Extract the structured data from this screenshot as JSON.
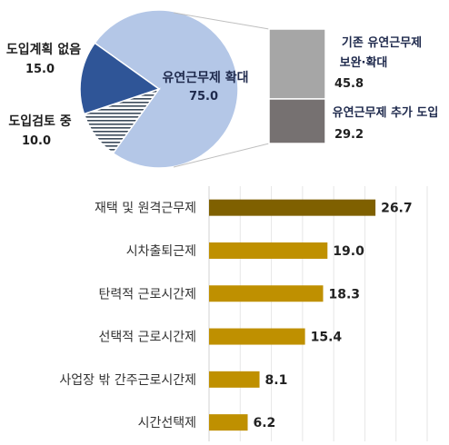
{
  "chart_data": [
    {
      "type": "pie",
      "slices": [
        {
          "label": "유연근무제 확대",
          "value": 75.0,
          "color": "#b4c7e7"
        },
        {
          "label": "도입검토 중",
          "value": 10.0,
          "color": "#ffffff",
          "pattern": "horizontal-stripes"
        },
        {
          "label": "도입계획 없음",
          "value": 15.0,
          "color": "#2f5597"
        }
      ],
      "labels": {
        "expand": {
          "name": "유연근무제 확대",
          "value": "75.0"
        },
        "review": {
          "name": "도입검토 중",
          "value": "10.0"
        },
        "noplan": {
          "name": "도입계획 없음",
          "value": "15.0"
        }
      },
      "breakdown": {
        "type": "stacked-bar",
        "of": "유연근무제 확대",
        "segments": [
          {
            "label_line1": "기존 유연근무제",
            "label_line2": "보완·확대",
            "value": 45.8,
            "value_text": "45.8",
            "color": "#a6a6a6"
          },
          {
            "label_line1": "유연근무제 추가 도입",
            "label_line2": "",
            "value": 29.2,
            "value_text": "29.2",
            "color": "#767171"
          }
        ]
      }
    },
    {
      "type": "bar",
      "orientation": "horizontal",
      "categories": [
        "재택 및 원격근무제",
        "시차출퇴근제",
        "탄력적 근로시간제",
        "선택적 근로시간제",
        "사업장 밖 간주근로시간제",
        "시간선택제"
      ],
      "values": [
        26.7,
        19.0,
        18.3,
        15.4,
        8.1,
        6.2
      ],
      "value_labels": [
        "26.7",
        "19.0",
        "18.3",
        "15.4",
        "8.1",
        "6.2"
      ],
      "colors": [
        "#7f6000",
        "#bf9000",
        "#bf9000",
        "#bf9000",
        "#bf9000",
        "#bf9000"
      ],
      "xlim": [
        0,
        35
      ],
      "grid": true
    }
  ]
}
